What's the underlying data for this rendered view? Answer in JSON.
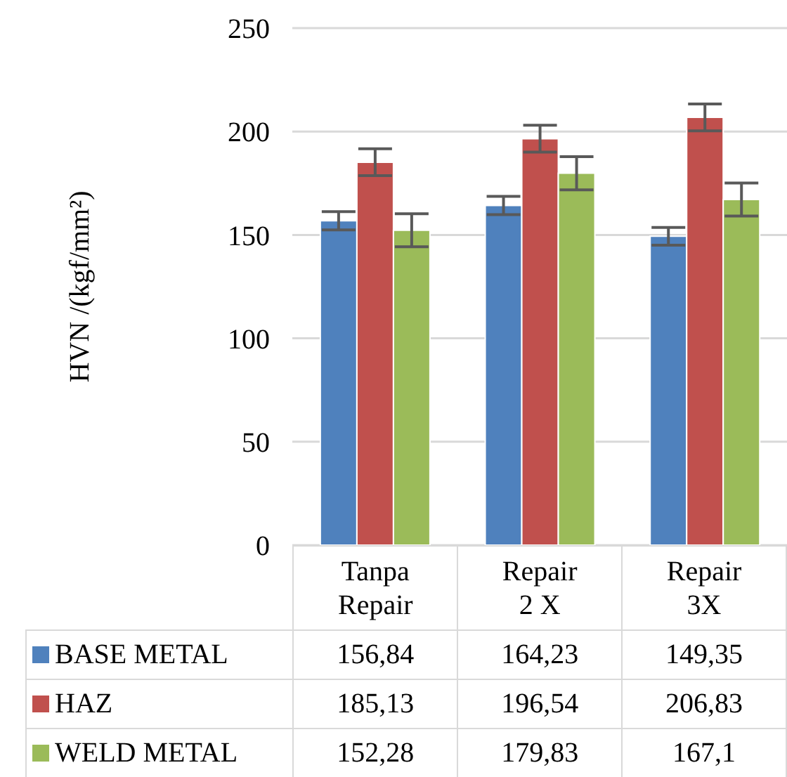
{
  "chart_data": {
    "type": "bar",
    "ylabel": "HVN /(kgf/mm²)",
    "categories": [
      "Tanpa Repair",
      "Repair 2 X",
      "Repair 3X"
    ],
    "series": [
      {
        "name": "BASE METAL",
        "color": "#4f81bd",
        "values": [
          156.84,
          164.23,
          149.35
        ],
        "errors": [
          4.4,
          4.4,
          4.3
        ],
        "value_labels": [
          "156,84",
          "164,23",
          "149,35"
        ]
      },
      {
        "name": "HAZ",
        "color": "#c0504d",
        "values": [
          185.13,
          196.54,
          206.83
        ],
        "errors": [
          6.5,
          6.5,
          6.5
        ],
        "value_labels": [
          "185,13",
          "196,54",
          "206,83"
        ]
      },
      {
        "name": "WELD METAL",
        "color": "#9bbb59",
        "values": [
          152.28,
          179.83,
          167.1
        ],
        "errors": [
          8,
          8,
          8
        ],
        "value_labels": [
          "152,28",
          "179,83",
          "167,1"
        ]
      }
    ],
    "ylim": [
      0,
      250
    ],
    "yticks": [
      0,
      50,
      100,
      150,
      200,
      250
    ],
    "grid": "y",
    "legend": "bottom"
  }
}
